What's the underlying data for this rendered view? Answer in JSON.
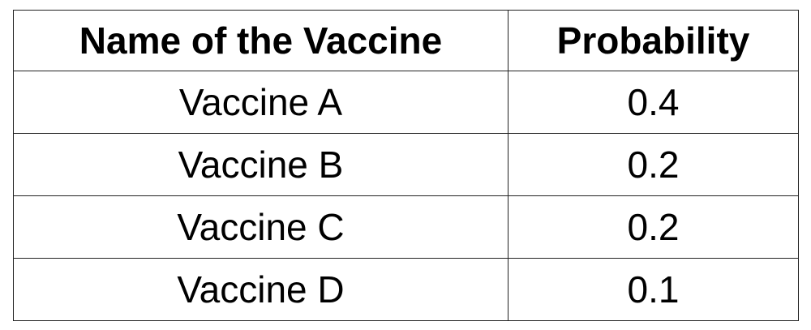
{
  "table": {
    "headers": [
      "Name of the Vaccine",
      "Probability"
    ],
    "rows": [
      [
        "Vaccine A",
        "0.4"
      ],
      [
        "Vaccine B",
        "0.2"
      ],
      [
        "Vaccine C",
        "0.2"
      ],
      [
        "Vaccine D",
        "0.1"
      ]
    ]
  }
}
